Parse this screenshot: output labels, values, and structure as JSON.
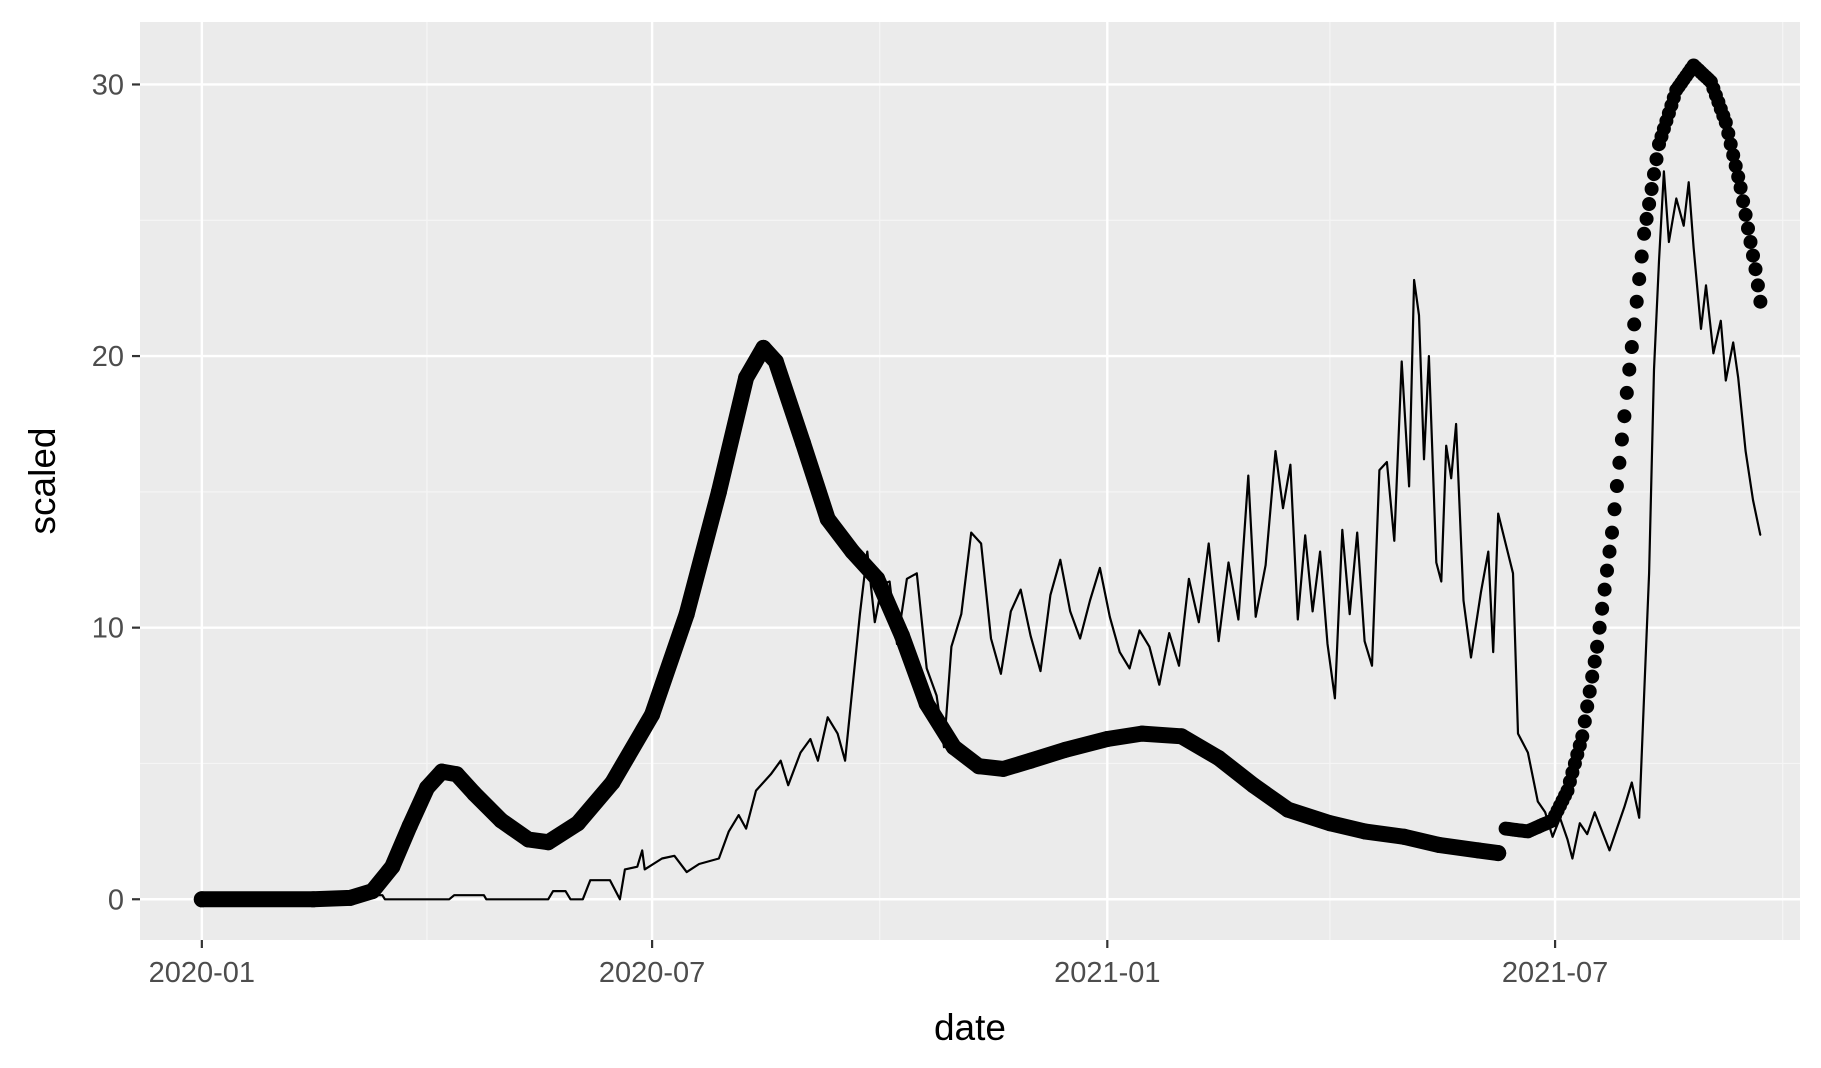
{
  "colors": {
    "panel_background": "#ebebeb",
    "grid_major": "#ffffff",
    "grid_minor": "#f5f5f5",
    "tick_text": "#4d4d4d",
    "series_color": "#000000"
  },
  "chart_data": {
    "type": "line",
    "xlabel": "date",
    "ylabel": "scaled",
    "x_axis": {
      "kind": "date",
      "range": [
        "2019-12-07",
        "2021-10-08"
      ],
      "tick_labels": [
        "2020-01",
        "2020-07",
        "2021-01",
        "2021-07"
      ],
      "ticks": [
        "2020-01-01",
        "2020-07-01",
        "2021-01-01",
        "2021-07-01"
      ],
      "minor_ticks": [
        "2020-04-01",
        "2020-10-01",
        "2021-04-01",
        "2021-10-01"
      ]
    },
    "y_axis": {
      "range": [
        -1.5,
        32.3
      ],
      "ticks": [
        0,
        10,
        20,
        30
      ],
      "minor_ticks": [
        5,
        15,
        25
      ]
    },
    "grid": true,
    "legend": "none",
    "series": [
      {
        "style": "thick-points",
        "points": [
          [
            "2020-01-01",
            0.0
          ],
          [
            "2020-02-15",
            0.0
          ],
          [
            "2020-03-01",
            0.05
          ],
          [
            "2020-03-10",
            0.3
          ],
          [
            "2020-03-18",
            1.2
          ],
          [
            "2020-03-25",
            2.7
          ],
          [
            "2020-04-01",
            4.1
          ],
          [
            "2020-04-07",
            4.7
          ],
          [
            "2020-04-13",
            4.6
          ],
          [
            "2020-04-20",
            3.9
          ],
          [
            "2020-05-01",
            2.9
          ],
          [
            "2020-05-12",
            2.2
          ],
          [
            "2020-05-20",
            2.1
          ],
          [
            "2020-06-01",
            2.8
          ],
          [
            "2020-06-15",
            4.3
          ],
          [
            "2020-07-01",
            6.8
          ],
          [
            "2020-07-15",
            10.5
          ],
          [
            "2020-07-28",
            15.0
          ],
          [
            "2020-08-08",
            19.2
          ],
          [
            "2020-08-15",
            20.3
          ],
          [
            "2020-08-20",
            19.8
          ],
          [
            "2020-08-31",
            16.8
          ],
          [
            "2020-09-10",
            14.0
          ],
          [
            "2020-09-20",
            12.8
          ],
          [
            "2020-09-30",
            11.8
          ],
          [
            "2020-10-10",
            9.7
          ],
          [
            "2020-10-20",
            7.2
          ],
          [
            "2020-10-31",
            5.6
          ],
          [
            "2020-11-10",
            4.9
          ],
          [
            "2020-11-20",
            4.8
          ],
          [
            "2020-12-01",
            5.1
          ],
          [
            "2020-12-15",
            5.5
          ],
          [
            "2021-01-01",
            5.9
          ],
          [
            "2021-01-15",
            6.1
          ],
          [
            "2021-01-31",
            6.0
          ],
          [
            "2021-02-15",
            5.2
          ],
          [
            "2021-03-01",
            4.2
          ],
          [
            "2021-03-15",
            3.3
          ],
          [
            "2021-04-01",
            2.8
          ],
          [
            "2021-04-15",
            2.5
          ],
          [
            "2021-05-01",
            2.3
          ],
          [
            "2021-05-15",
            2.0
          ],
          [
            "2021-05-31",
            1.8
          ],
          [
            "2021-06-08",
            1.7
          ]
        ]
      },
      {
        "style": "dotted-points",
        "points": [
          [
            "2021-06-11",
            2.6
          ],
          [
            "2021-06-20",
            2.5
          ],
          [
            "2021-06-30",
            2.9
          ],
          [
            "2021-07-06",
            4.0
          ],
          [
            "2021-07-12",
            6.0
          ],
          [
            "2021-07-18",
            9.3
          ],
          [
            "2021-07-24",
            13.5
          ],
          [
            "2021-07-31",
            19.5
          ],
          [
            "2021-08-06",
            24.5
          ],
          [
            "2021-08-12",
            27.8
          ],
          [
            "2021-08-19",
            29.8
          ],
          [
            "2021-08-26",
            30.7
          ],
          [
            "2021-09-02",
            30.1
          ],
          [
            "2021-09-08",
            28.6
          ],
          [
            "2021-09-14",
            26.2
          ],
          [
            "2021-09-20",
            23.2
          ],
          [
            "2021-09-22",
            22.0
          ]
        ]
      },
      {
        "style": "thin-line",
        "points": [
          [
            "2020-01-01",
            0.0
          ],
          [
            "2020-03-05",
            0.0
          ],
          [
            "2020-03-08",
            0.15
          ],
          [
            "2020-03-14",
            0.15
          ],
          [
            "2020-03-15",
            0.0
          ],
          [
            "2020-04-10",
            0.0
          ],
          [
            "2020-04-12",
            0.15
          ],
          [
            "2020-04-24",
            0.15
          ],
          [
            "2020-04-25",
            0.0
          ],
          [
            "2020-05-20",
            0.0
          ],
          [
            "2020-05-22",
            0.3
          ],
          [
            "2020-05-27",
            0.3
          ],
          [
            "2020-05-29",
            0.0
          ],
          [
            "2020-06-03",
            0.0
          ],
          [
            "2020-06-06",
            0.7
          ],
          [
            "2020-06-14",
            0.7
          ],
          [
            "2020-06-18",
            0.0
          ],
          [
            "2020-06-20",
            1.1
          ],
          [
            "2020-06-25",
            1.2
          ],
          [
            "2020-06-27",
            1.8
          ],
          [
            "2020-06-28",
            1.1
          ],
          [
            "2020-07-05",
            1.5
          ],
          [
            "2020-07-10",
            1.6
          ],
          [
            "2020-07-15",
            1.0
          ],
          [
            "2020-07-20",
            1.3
          ],
          [
            "2020-07-28",
            1.5
          ],
          [
            "2020-08-01",
            2.5
          ],
          [
            "2020-08-05",
            3.1
          ],
          [
            "2020-08-08",
            2.6
          ],
          [
            "2020-08-12",
            4.0
          ],
          [
            "2020-08-18",
            4.6
          ],
          [
            "2020-08-22",
            5.1
          ],
          [
            "2020-08-25",
            4.2
          ],
          [
            "2020-08-30",
            5.4
          ],
          [
            "2020-09-03",
            5.9
          ],
          [
            "2020-09-06",
            5.1
          ],
          [
            "2020-09-10",
            6.7
          ],
          [
            "2020-09-14",
            6.1
          ],
          [
            "2020-09-17",
            5.1
          ],
          [
            "2020-09-20",
            7.8
          ],
          [
            "2020-09-23",
            10.5
          ],
          [
            "2020-09-26",
            12.8
          ],
          [
            "2020-09-29",
            10.2
          ],
          [
            "2020-10-02",
            11.6
          ],
          [
            "2020-10-05",
            11.7
          ],
          [
            "2020-10-08",
            9.4
          ],
          [
            "2020-10-12",
            11.8
          ],
          [
            "2020-10-16",
            12.0
          ],
          [
            "2020-10-20",
            8.5
          ],
          [
            "2020-10-24",
            7.5
          ],
          [
            "2020-10-27",
            5.6
          ],
          [
            "2020-10-30",
            9.3
          ],
          [
            "2020-11-03",
            10.5
          ],
          [
            "2020-11-07",
            13.5
          ],
          [
            "2020-11-11",
            13.1
          ],
          [
            "2020-11-15",
            9.6
          ],
          [
            "2020-11-19",
            8.3
          ],
          [
            "2020-11-23",
            10.6
          ],
          [
            "2020-11-27",
            11.4
          ],
          [
            "2020-12-01",
            9.7
          ],
          [
            "2020-12-05",
            8.4
          ],
          [
            "2020-12-09",
            11.2
          ],
          [
            "2020-12-13",
            12.5
          ],
          [
            "2020-12-17",
            10.6
          ],
          [
            "2020-12-21",
            9.6
          ],
          [
            "2020-12-25",
            11.0
          ],
          [
            "2020-12-29",
            12.2
          ],
          [
            "2021-01-02",
            10.4
          ],
          [
            "2021-01-06",
            9.1
          ],
          [
            "2021-01-10",
            8.5
          ],
          [
            "2021-01-14",
            9.9
          ],
          [
            "2021-01-18",
            9.3
          ],
          [
            "2021-01-22",
            7.9
          ],
          [
            "2021-01-26",
            9.8
          ],
          [
            "2021-01-30",
            8.6
          ],
          [
            "2021-02-03",
            11.8
          ],
          [
            "2021-02-07",
            10.2
          ],
          [
            "2021-02-11",
            13.1
          ],
          [
            "2021-02-15",
            9.5
          ],
          [
            "2021-02-19",
            12.4
          ],
          [
            "2021-02-23",
            10.3
          ],
          [
            "2021-02-27",
            15.6
          ],
          [
            "2021-03-02",
            10.4
          ],
          [
            "2021-03-06",
            12.3
          ],
          [
            "2021-03-10",
            16.5
          ],
          [
            "2021-03-13",
            14.4
          ],
          [
            "2021-03-16",
            16.0
          ],
          [
            "2021-03-19",
            10.3
          ],
          [
            "2021-03-22",
            13.4
          ],
          [
            "2021-03-25",
            10.6
          ],
          [
            "2021-03-28",
            12.8
          ],
          [
            "2021-03-31",
            9.4
          ],
          [
            "2021-04-03",
            7.4
          ],
          [
            "2021-04-06",
            13.6
          ],
          [
            "2021-04-09",
            10.5
          ],
          [
            "2021-04-12",
            13.5
          ],
          [
            "2021-04-15",
            9.5
          ],
          [
            "2021-04-18",
            8.6
          ],
          [
            "2021-04-21",
            15.8
          ],
          [
            "2021-04-24",
            16.1
          ],
          [
            "2021-04-27",
            13.2
          ],
          [
            "2021-04-30",
            19.8
          ],
          [
            "2021-05-03",
            15.2
          ],
          [
            "2021-05-05",
            22.8
          ],
          [
            "2021-05-07",
            21.5
          ],
          [
            "2021-05-09",
            16.2
          ],
          [
            "2021-05-11",
            20.0
          ],
          [
            "2021-05-14",
            12.4
          ],
          [
            "2021-05-16",
            11.7
          ],
          [
            "2021-05-18",
            16.7
          ],
          [
            "2021-05-20",
            15.5
          ],
          [
            "2021-05-22",
            17.5
          ],
          [
            "2021-05-25",
            11.0
          ],
          [
            "2021-05-28",
            8.9
          ],
          [
            "2021-06-01",
            11.3
          ],
          [
            "2021-06-04",
            12.8
          ],
          [
            "2021-06-06",
            9.1
          ],
          [
            "2021-06-08",
            14.2
          ],
          [
            "2021-06-11",
            13.1
          ],
          [
            "2021-06-14",
            12.0
          ],
          [
            "2021-06-16",
            6.1
          ],
          [
            "2021-06-20",
            5.4
          ],
          [
            "2021-06-24",
            3.6
          ],
          [
            "2021-06-27",
            3.2
          ],
          [
            "2021-06-30",
            2.3
          ],
          [
            "2021-07-03",
            3.0
          ],
          [
            "2021-07-06",
            2.2
          ],
          [
            "2021-07-08",
            1.5
          ],
          [
            "2021-07-11",
            2.8
          ],
          [
            "2021-07-14",
            2.4
          ],
          [
            "2021-07-17",
            3.2
          ],
          [
            "2021-07-20",
            2.5
          ],
          [
            "2021-07-23",
            1.8
          ],
          [
            "2021-07-26",
            2.6
          ],
          [
            "2021-07-29",
            3.4
          ],
          [
            "2021-08-01",
            4.3
          ],
          [
            "2021-08-04",
            3.0
          ],
          [
            "2021-08-06",
            7.5
          ],
          [
            "2021-08-08",
            12.0
          ],
          [
            "2021-08-10",
            19.5
          ],
          [
            "2021-08-12",
            23.5
          ],
          [
            "2021-08-14",
            26.8
          ],
          [
            "2021-08-16",
            24.2
          ],
          [
            "2021-08-19",
            25.8
          ],
          [
            "2021-08-22",
            24.8
          ],
          [
            "2021-08-24",
            26.4
          ],
          [
            "2021-08-26",
            24.0
          ],
          [
            "2021-08-29",
            21.0
          ],
          [
            "2021-08-31",
            22.6
          ],
          [
            "2021-09-03",
            20.1
          ],
          [
            "2021-09-06",
            21.3
          ],
          [
            "2021-09-08",
            19.1
          ],
          [
            "2021-09-11",
            20.5
          ],
          [
            "2021-09-13",
            19.2
          ],
          [
            "2021-09-16",
            16.5
          ],
          [
            "2021-09-19",
            14.7
          ],
          [
            "2021-09-22",
            13.4
          ]
        ]
      }
    ]
  }
}
